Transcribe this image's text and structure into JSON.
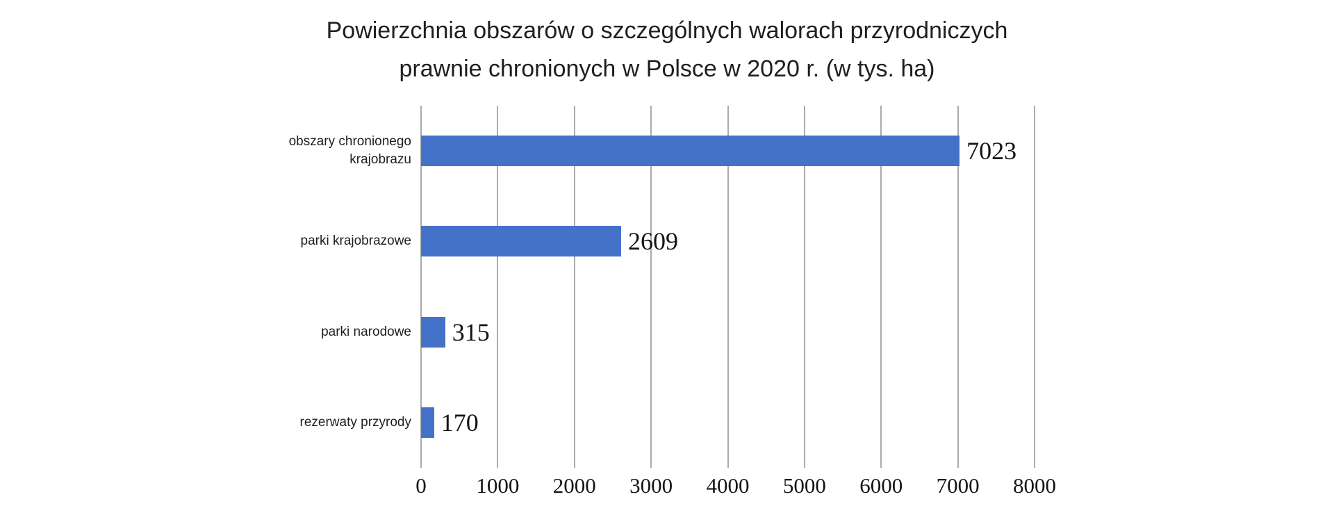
{
  "page": {
    "background": "#ffffff"
  },
  "title_line1": "Powierzchnia obszarów o szczególnych walorach przyrodniczych",
  "title_line2": "prawnie chronionych w Polsce w 2020 r. (w tys. ha)",
  "chart_data": {
    "type": "bar",
    "orientation": "horizontal",
    "title": "Powierzchnia obszarów o szczególnych walorach przyrodniczych prawnie chronionych w Polsce w 2020 r. (w tys. ha)",
    "categories": [
      "obszary chronionego krajobrazu",
      "parki krajobrazowe",
      "parki narodowe",
      "rezerwaty przyrody"
    ],
    "values": [
      7023,
      2609,
      315,
      170
    ],
    "value_labels": [
      "7023",
      "2609",
      "315",
      "170"
    ],
    "unit": "tys. ha",
    "xlabel": "",
    "ylabel": "",
    "xlim": [
      0,
      8000
    ],
    "xticks": [
      0,
      1000,
      2000,
      3000,
      4000,
      5000,
      6000,
      7000,
      8000
    ],
    "grid": true,
    "legend": false,
    "bar_color": "#4472c9",
    "gridline_color": "#ababab",
    "text_color": "#1f1f1f",
    "number_color": "#141414"
  }
}
